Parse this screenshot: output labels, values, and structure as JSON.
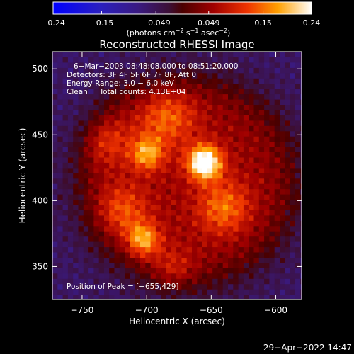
{
  "chart_data": {
    "type": "heatmap",
    "title": "Reconstructed RHESSI Image",
    "xlabel": "Heliocentric X (arcsec)",
    "ylabel": "Heliocentric Y (arcsec)",
    "xlim": [
      -773,
      -580
    ],
    "ylim": [
      325,
      513
    ],
    "x_ticks": [
      -750,
      -700,
      -650,
      -600
    ],
    "y_ticks": [
      350,
      400,
      450,
      500
    ],
    "x_tick_labels": [
      "−750",
      "−700",
      "−650",
      "−600"
    ],
    "y_tick_labels": [
      "350",
      "400",
      "450",
      "500"
    ],
    "colorbar": {
      "min": -0.24,
      "max": 0.24,
      "ticks": [
        -0.24,
        -0.15,
        -0.049,
        0.049,
        0.15,
        0.24
      ],
      "tick_labels": [
        "−0.24",
        "−0.15",
        "−0.049",
        "0.049",
        "0.15",
        "0.24"
      ],
      "units_prefix": "(photons cm",
      "units_sup1": "−2",
      "units_mid": " s",
      "units_sup2": "−1",
      "units_mid2": " asec",
      "units_sup3": "−2",
      "units_suffix": ")"
    },
    "annotations": [
      "6−Mar−2003 08:48:08.000 to 08:51:20.000",
      "Detectors: 3F 4F 5F 6F 7F 8F, Att 0",
      "Energy Range: 3.0 − 6.0 keV",
      "Clean     Total counts: 4.13E+04"
    ],
    "peak_label": "Position of Peak = [−655,429]",
    "peak": [
      -655,
      429
    ],
    "sources": [
      {
        "x": -655,
        "y": 429,
        "amp": 0.24,
        "sigma": 9
      },
      {
        "x": -700,
        "y": 436,
        "amp": 0.13,
        "sigma": 9
      },
      {
        "x": -703,
        "y": 370,
        "amp": 0.15,
        "sigma": 9
      },
      {
        "x": -735,
        "y": 448,
        "amp": 0.1,
        "sigma": 14
      },
      {
        "x": -685,
        "y": 465,
        "amp": 0.1,
        "sigma": 16
      },
      {
        "x": -640,
        "y": 395,
        "amp": 0.1,
        "sigma": 14
      },
      {
        "x": -720,
        "y": 392,
        "amp": 0.09,
        "sigma": 14
      },
      {
        "x": -680,
        "y": 345,
        "amp": 0.08,
        "sigma": 12
      },
      {
        "x": -728,
        "y": 490,
        "amp": 0.08,
        "sigma": 12
      }
    ]
  },
  "footer": {
    "timestamp": "29−Apr−2022 14:47"
  }
}
